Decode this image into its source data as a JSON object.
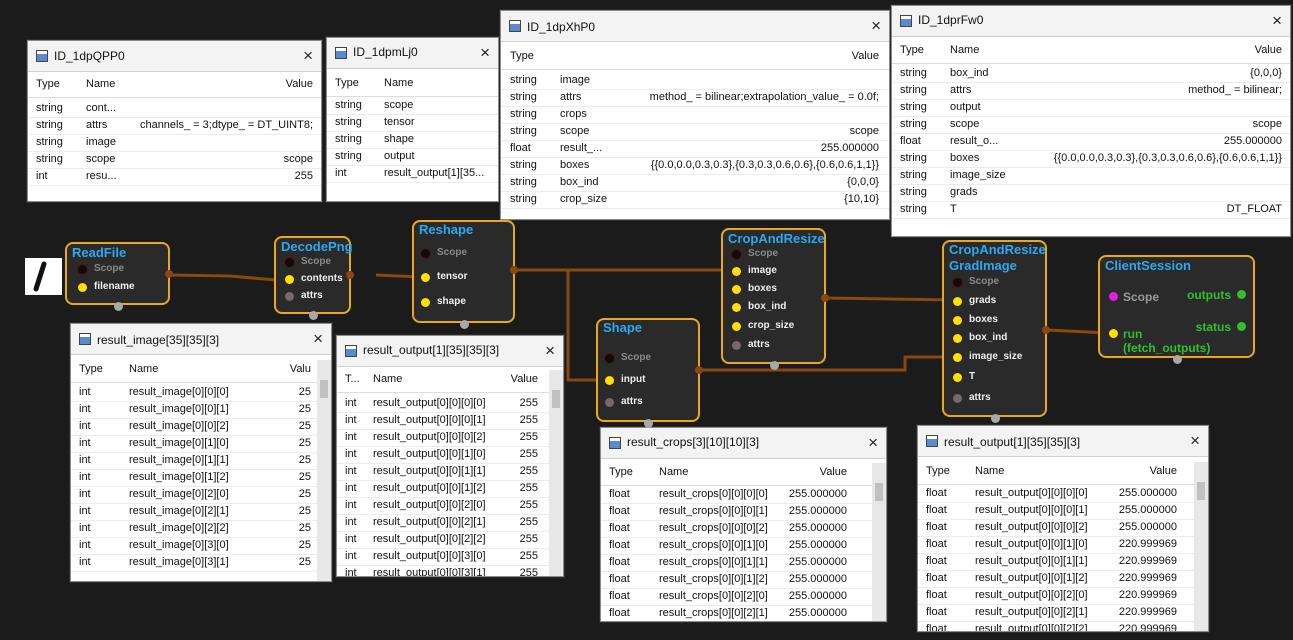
{
  "nodes": [
    {
      "title": [
        "ReadFile"
      ],
      "pins": [
        "Scope",
        "filename"
      ]
    },
    {
      "title": [
        "DecodePng"
      ],
      "pins": [
        "Scope",
        "contents",
        "attrs"
      ]
    },
    {
      "title": [
        "Reshape"
      ],
      "pins": [
        "Scope",
        "tensor",
        "shape"
      ]
    },
    {
      "title": [
        "CropAndResize"
      ],
      "pins": [
        "Scope",
        "image",
        "boxes",
        "box_ind",
        "crop_size",
        "attrs"
      ]
    },
    {
      "title": [
        "Shape"
      ],
      "pins": [
        "Scope",
        "input",
        "attrs"
      ]
    },
    {
      "title": [
        "CropAndResize",
        "GradImage"
      ],
      "pins": [
        "Scope",
        "grads",
        "boxes",
        "box_ind",
        "image_size",
        "T",
        "attrs"
      ]
    },
    {
      "title": [
        "ClientSession"
      ],
      "pins": [
        "Scope",
        "run",
        "(fetch_outputs)"
      ],
      "outputs": [
        "outputs",
        "status"
      ]
    }
  ],
  "windows": [
    {
      "title": "ID_1dpQPP0",
      "columns": [
        "Type",
        "Name",
        "Value"
      ],
      "rows": [
        [
          "string",
          "cont..."
        ],
        [
          "string",
          "attrs",
          "channels_ = 3;dtype_ = DT_UINT8;"
        ],
        [
          "string",
          "image"
        ],
        [
          "string",
          "scope",
          "scope"
        ],
        [
          "int",
          "resu...",
          "255"
        ]
      ]
    },
    {
      "title": "ID_1dpmLj0",
      "columns": [
        "Type",
        "Name"
      ],
      "rows": [
        [
          "string",
          "scope"
        ],
        [
          "string",
          "tensor"
        ],
        [
          "string",
          "shape"
        ],
        [
          "string",
          "output"
        ],
        [
          "int",
          "result_output[1][35..."
        ]
      ]
    },
    {
      "title": "ID_1dpXhP0",
      "columns": [
        "Type",
        "Value"
      ],
      "rows": [
        [
          "string",
          "image"
        ],
        [
          "string",
          "attrs",
          "method_ = bilinear;extrapolation_value_ = 0.0f;"
        ],
        [
          "string",
          "crops"
        ],
        [
          "string",
          "scope",
          "scope"
        ],
        [
          "float",
          "result_...",
          "255.000000"
        ],
        [
          "string",
          "boxes",
          "{{0.0,0.0,0.3,0.3},{0.3,0.3,0.6,0.6},{0.6,0.6,1,1}}"
        ],
        [
          "string",
          "box_ind",
          "{0,0,0}"
        ],
        [
          "string",
          "crop_size",
          "{10,10}"
        ]
      ]
    },
    {
      "title": "ID_1dprFw0",
      "columns": [
        "Type",
        "Name",
        "Value"
      ],
      "rows": [
        [
          "string",
          "box_ind",
          "{0,0,0}"
        ],
        [
          "string",
          "attrs",
          "method_ = bilinear;"
        ],
        [
          "string",
          "output"
        ],
        [
          "string",
          "scope",
          "scope"
        ],
        [
          "float",
          "result_o...",
          "255.000000"
        ],
        [
          "string",
          "boxes",
          "{{0.0,0.0,0.3,0.3},{0.3,0.3,0.6,0.6},{0.6,0.6,1,1}}"
        ],
        [
          "string",
          "image_size"
        ],
        [
          "string",
          "grads"
        ],
        [
          "string",
          "T",
          "DT_FLOAT"
        ]
      ]
    },
    {
      "title": "result_image[35][35][3]",
      "columns": [
        "Type",
        "Name",
        "Valu"
      ],
      "rows": [
        [
          "int",
          "result_image[0][0][0]",
          "25"
        ],
        [
          "int",
          "result_image[0][0][1]",
          "25"
        ],
        [
          "int",
          "result_image[0][0][2]",
          "25"
        ],
        [
          "int",
          "result_image[0][1][0]",
          "25"
        ],
        [
          "int",
          "result_image[0][1][1]",
          "25"
        ],
        [
          "int",
          "result_image[0][1][2]",
          "25"
        ],
        [
          "int",
          "result_image[0][2][0]",
          "25"
        ],
        [
          "int",
          "result_image[0][2][1]",
          "25"
        ],
        [
          "int",
          "result_image[0][2][2]",
          "25"
        ],
        [
          "int",
          "result_image[0][3][0]",
          "25"
        ],
        [
          "int",
          "result_image[0][3][1]",
          "25"
        ]
      ]
    },
    {
      "title": "result_output[1][35][35][3]",
      "columns": [
        "T...",
        "Name",
        "Value"
      ],
      "rows": [
        [
          "int",
          "result_output[0][0][0][0]",
          "255"
        ],
        [
          "int",
          "result_output[0][0][0][1]",
          "255"
        ],
        [
          "int",
          "result_output[0][0][0][2]",
          "255"
        ],
        [
          "int",
          "result_output[0][0][1][0]",
          "255"
        ],
        [
          "int",
          "result_output[0][0][1][1]",
          "255"
        ],
        [
          "int",
          "result_output[0][0][1][2]",
          "255"
        ],
        [
          "int",
          "result_output[0][0][2][0]",
          "255"
        ],
        [
          "int",
          "result_output[0][0][2][1]",
          "255"
        ],
        [
          "int",
          "result_output[0][0][2][2]",
          "255"
        ],
        [
          "int",
          "result_output[0][0][3][0]",
          "255"
        ],
        [
          "int",
          "result_output[0][0][3][1]",
          "255"
        ]
      ]
    },
    {
      "title": "result_crops[3][10][10][3]",
      "columns": [
        "Type",
        "Name",
        "Value"
      ],
      "rows": [
        [
          "float",
          "result_crops[0][0][0][0]",
          "255.000000"
        ],
        [
          "float",
          "result_crops[0][0][0][1]",
          "255.000000"
        ],
        [
          "float",
          "result_crops[0][0][0][2]",
          "255.000000"
        ],
        [
          "float",
          "result_crops[0][0][1][0]",
          "255.000000"
        ],
        [
          "float",
          "result_crops[0][0][1][1]",
          "255.000000"
        ],
        [
          "float",
          "result_crops[0][0][1][2]",
          "255.000000"
        ],
        [
          "float",
          "result_crops[0][0][2][0]",
          "255.000000"
        ],
        [
          "float",
          "result_crops[0][0][2][1]",
          "255.000000"
        ]
      ]
    },
    {
      "title": "result_output[1][35][35][3]",
      "columns": [
        "Type",
        "Name",
        "Value"
      ],
      "rows": [
        [
          "float",
          "result_output[0][0][0][0]",
          "255.000000"
        ],
        [
          "float",
          "result_output[0][0][0][1]",
          "255.000000"
        ],
        [
          "float",
          "result_output[0][0][0][2]",
          "255.000000"
        ],
        [
          "float",
          "result_output[0][0][1][0]",
          "220.999969"
        ],
        [
          "float",
          "result_output[0][0][1][1]",
          "220.999969"
        ],
        [
          "float",
          "result_output[0][0][1][2]",
          "220.999969"
        ],
        [
          "float",
          "result_output[0][0][2][0]",
          "220.999969"
        ],
        [
          "float",
          "result_output[0][0][2][1]",
          "220.999969"
        ],
        [
          "float",
          "result_output[0][0][2][2]",
          "220.999969"
        ]
      ]
    }
  ]
}
